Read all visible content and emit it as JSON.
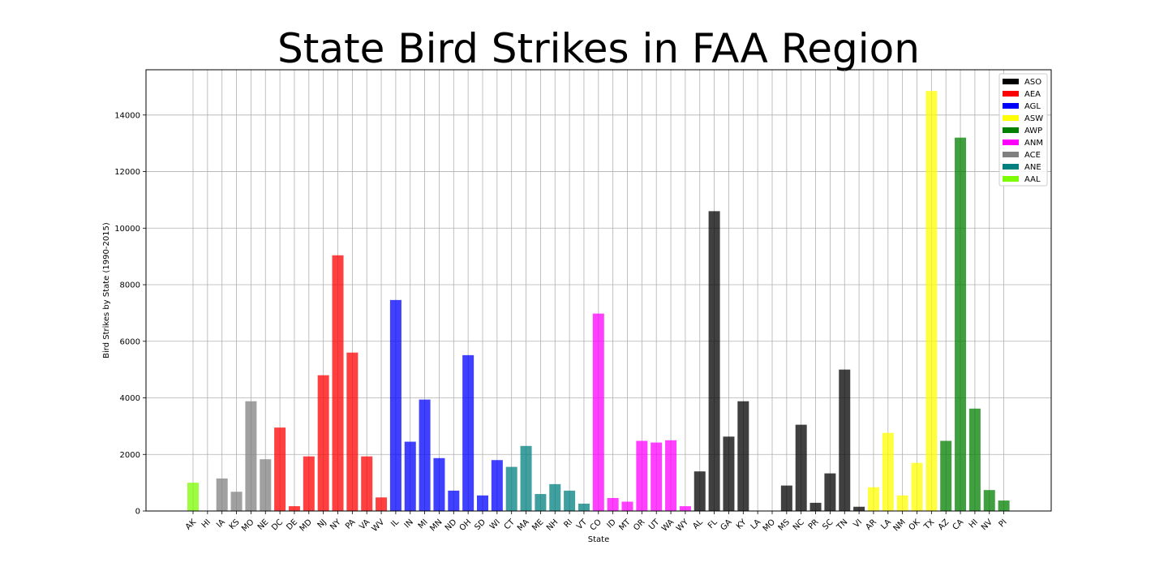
{
  "chart_data": {
    "type": "bar",
    "title": "State Bird Strikes in FAA Region",
    "xlabel": "State",
    "ylabel": "Bird Strikes by State (1990-2015)",
    "ylim": [
      0,
      15600
    ],
    "yticks": [
      0,
      2000,
      4000,
      6000,
      8000,
      10000,
      12000,
      14000
    ],
    "grid": true,
    "legend_position": "top-right",
    "legend": [
      {
        "name": "ASO",
        "color": "#000000"
      },
      {
        "name": "AEA",
        "color": "#ff0000"
      },
      {
        "name": "AGL",
        "color": "#0000ff"
      },
      {
        "name": "ASW",
        "color": "#ffff00"
      },
      {
        "name": "AWP",
        "color": "#008000"
      },
      {
        "name": "ANM",
        "color": "#ff00ff"
      },
      {
        "name": "ACE",
        "color": "#808080"
      },
      {
        "name": "ANE",
        "color": "#008080"
      },
      {
        "name": "AAL",
        "color": "#7cfc00"
      }
    ],
    "categories": [
      "AK",
      "HI",
      "IA",
      "KS",
      "MO",
      "NE",
      "DC",
      "DE",
      "MD",
      "NJ",
      "NY",
      "PA",
      "VA",
      "WV",
      "IL",
      "IN",
      "MI",
      "MN",
      "ND",
      "OH",
      "SD",
      "WI",
      "CT",
      "MA",
      "ME",
      "NH",
      "RI",
      "VT",
      "CO",
      "ID",
      "MT",
      "OR",
      "UT",
      "WA",
      "WY",
      "AL",
      "FL",
      "GA",
      "KY",
      "LA",
      "MO",
      "MS",
      "NC",
      "PR",
      "SC",
      "TN",
      "VI",
      "AR",
      "LA",
      "NM",
      "OK",
      "TX",
      "AZ",
      "CA",
      "HI",
      "NV",
      "PI"
    ],
    "values": [
      1000,
      0,
      1150,
      680,
      3880,
      1830,
      2950,
      170,
      1930,
      4800,
      9040,
      5600,
      1930,
      480,
      7460,
      2450,
      3940,
      1870,
      720,
      5510,
      550,
      1800,
      1560,
      2300,
      600,
      950,
      720,
      260,
      6980,
      460,
      330,
      2480,
      2420,
      2500,
      170,
      1400,
      10600,
      2630,
      3880,
      0,
      0,
      900,
      3050,
      290,
      1330,
      5000,
      150,
      840,
      2760,
      550,
      1700,
      14850,
      2480,
      13200,
      3620,
      740,
      370
    ],
    "regions": [
      "AAL",
      "AAL",
      "ACE",
      "ACE",
      "ACE",
      "ACE",
      "AEA",
      "AEA",
      "AEA",
      "AEA",
      "AEA",
      "AEA",
      "AEA",
      "AEA",
      "AGL",
      "AGL",
      "AGL",
      "AGL",
      "AGL",
      "AGL",
      "AGL",
      "AGL",
      "ANE",
      "ANE",
      "ANE",
      "ANE",
      "ANE",
      "ANE",
      "ANM",
      "ANM",
      "ANM",
      "ANM",
      "ANM",
      "ANM",
      "ANM",
      "ASO",
      "ASO",
      "ASO",
      "ASO",
      "ASO",
      "ASO",
      "ASO",
      "ASO",
      "ASO",
      "ASO",
      "ASO",
      "ASO",
      "ASW",
      "ASW",
      "ASW",
      "ASW",
      "ASW",
      "AWP",
      "AWP",
      "AWP",
      "AWP",
      "AWP"
    ]
  }
}
